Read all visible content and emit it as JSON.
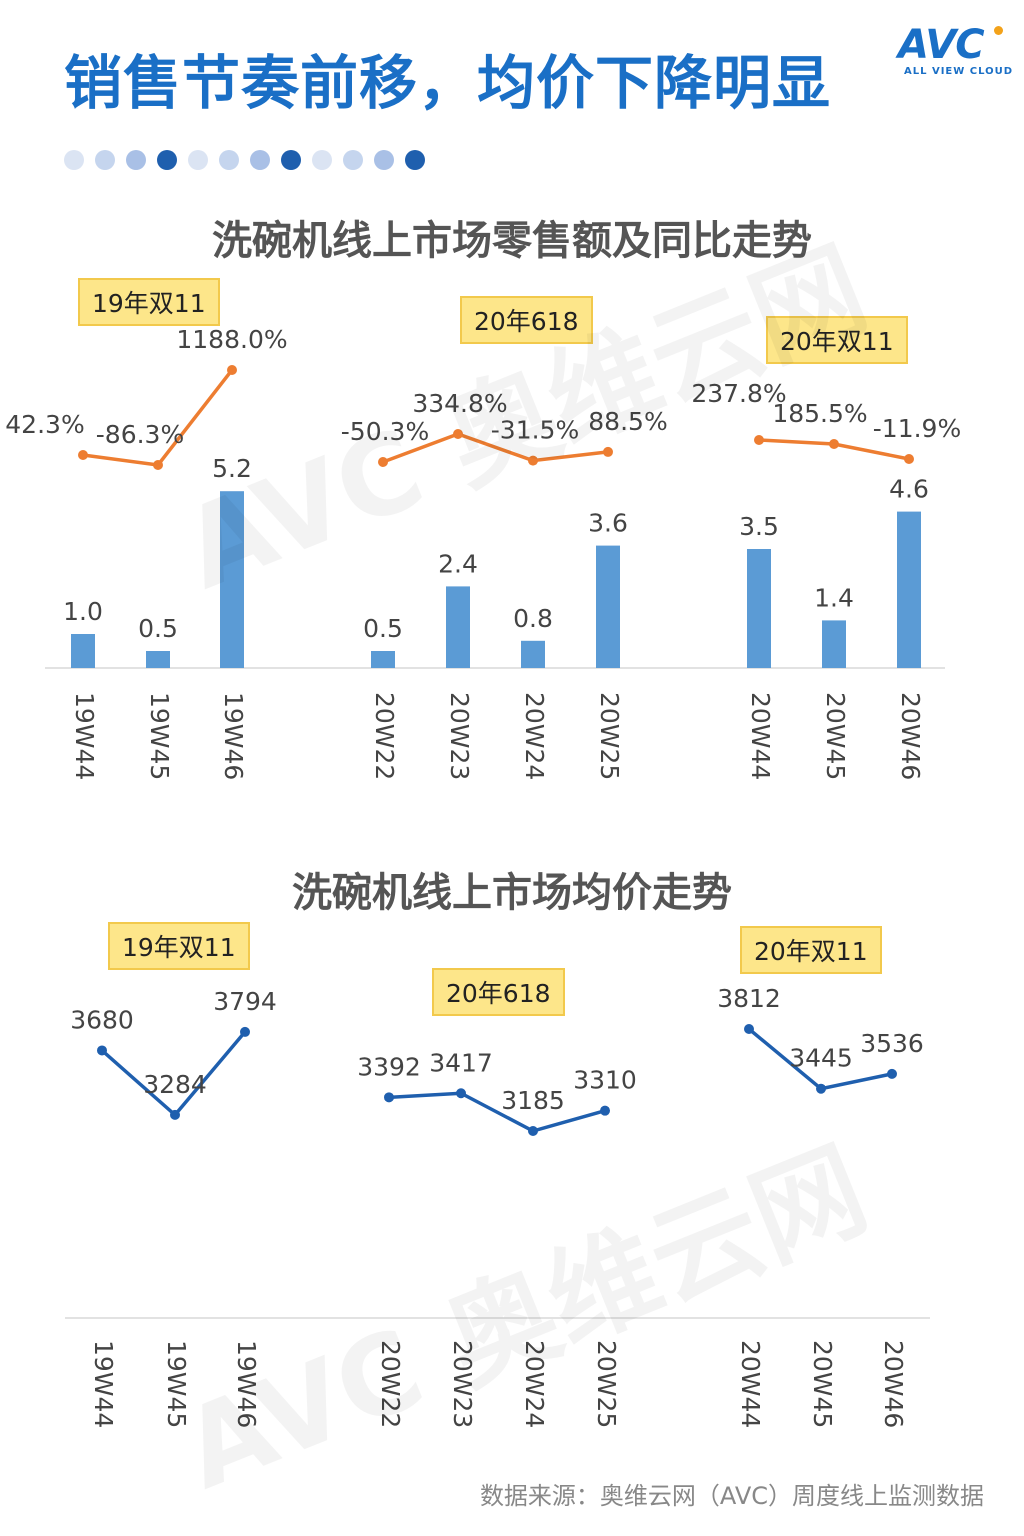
{
  "header": {
    "title": "销售节奏前移，均价下降明显",
    "logo_text": "AVC",
    "logo_sub": "ALL VIEW CLOUD"
  },
  "deco_dots": [
    "#dbe4f3",
    "#c5d5ee",
    "#a9c0e6",
    "#1f5fae",
    "#dbe4f3",
    "#c5d5ee",
    "#a9c0e6",
    "#1f5fae",
    "#dbe4f3",
    "#c5d5ee",
    "#a9c0e6",
    "#1f5fae"
  ],
  "colors": {
    "title": "#1a6fc6",
    "bar": "#5b9bd5",
    "yoy_line": "#ed7d31",
    "price_line": "#1f5fae",
    "tag_fill": "#fde68a"
  },
  "watermark": {
    "text": "AVC 奥维云网",
    "sub": "ALL VIEW CLOUD"
  },
  "tags": [
    "19年双11",
    "20年618",
    "20年双11"
  ],
  "chart_data": [
    {
      "type": "bar",
      "title": "洗碗机线上市场零售额及同比走势",
      "groups": [
        {
          "label": "19年双11",
          "categories": [
            "19W44",
            "19W45",
            "19W46"
          ],
          "values": [
            1.0,
            0.5,
            5.2
          ],
          "value_labels": [
            "1.0",
            "0.5",
            "5.2"
          ],
          "yoy": [
            42.3,
            -86.3,
            1188.0
          ],
          "yoy_labels": [
            "42.3%",
            "-86.3%",
            "1188.0%"
          ]
        },
        {
          "label": "20年618",
          "categories": [
            "20W22",
            "20W23",
            "20W24",
            "20W25"
          ],
          "values": [
            0.5,
            2.4,
            0.8,
            3.6
          ],
          "value_labels": [
            "0.5",
            "2.4",
            "0.8",
            "3.6"
          ],
          "yoy": [
            -50.3,
            334.8,
            -31.5,
            88.5
          ],
          "yoy_labels": [
            "-50.3%",
            "334.8%",
            "-31.5%",
            "88.5%"
          ]
        },
        {
          "label": "20年双11",
          "categories": [
            "20W44",
            "20W45",
            "20W46"
          ],
          "values": [
            3.5,
            1.4,
            4.6
          ],
          "value_labels": [
            "3.5",
            "1.4",
            "4.6"
          ],
          "yoy": [
            237.8,
            185.5,
            -11.9
          ],
          "yoy_labels": [
            "237.8%",
            "185.5%",
            "-11.9%"
          ]
        }
      ]
    },
    {
      "type": "line",
      "title": "洗碗机线上市场均价走势",
      "groups": [
        {
          "label": "19年双11",
          "categories": [
            "19W44",
            "19W45",
            "19W46"
          ],
          "values": [
            3680,
            3284,
            3794
          ]
        },
        {
          "label": "20年618",
          "categories": [
            "20W22",
            "20W23",
            "20W24",
            "20W25"
          ],
          "values": [
            3392,
            3417,
            3185,
            3310
          ]
        },
        {
          "label": "20年双11",
          "categories": [
            "20W44",
            "20W45",
            "20W46"
          ],
          "values": [
            3812,
            3445,
            3536
          ]
        }
      ]
    }
  ],
  "footer": {
    "source": "数据来源：奥维云网（AVC）周度线上监测数据"
  }
}
